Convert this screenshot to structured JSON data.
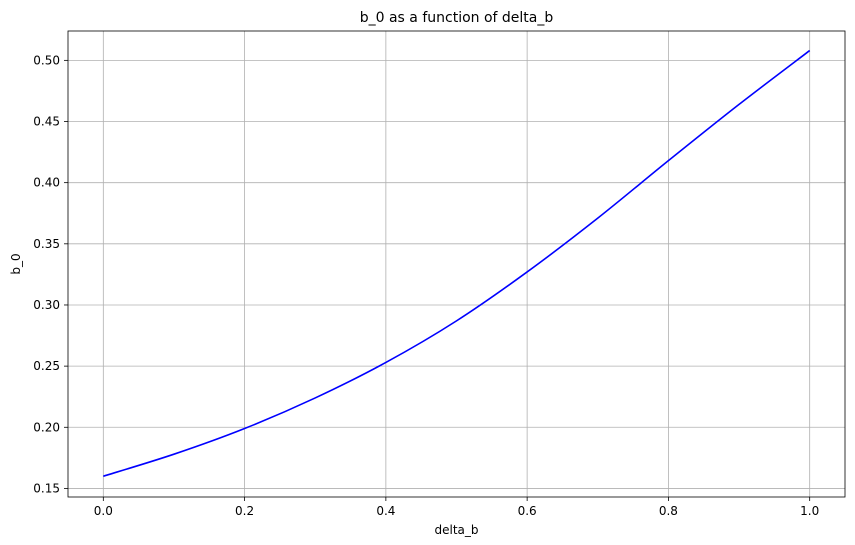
{
  "chart_data": {
    "type": "line",
    "title": "b_0 as a function of delta_b",
    "xlabel": "delta_b",
    "ylabel": "b_0",
    "xlim": [
      -0.05,
      1.05
    ],
    "ylim": [
      0.143,
      0.524
    ],
    "grid": true,
    "xticks": [
      0.0,
      0.2,
      0.4,
      0.6,
      0.8,
      1.0
    ],
    "xtick_labels": [
      "0.0",
      "0.2",
      "0.4",
      "0.6",
      "0.8",
      "1.0"
    ],
    "yticks": [
      0.15,
      0.2,
      0.25,
      0.3,
      0.35,
      0.4,
      0.45,
      0.5
    ],
    "ytick_labels": [
      "0.15",
      "0.20",
      "0.25",
      "0.30",
      "0.35",
      "0.40",
      "0.45",
      "0.50"
    ],
    "series": [
      {
        "color": "#0000ff",
        "x": [
          0.0,
          0.1,
          0.2,
          0.3,
          0.4,
          0.5,
          0.6,
          0.7,
          0.8,
          0.9,
          1.0
        ],
        "y": [
          0.16,
          0.178,
          0.199,
          0.224,
          0.253,
          0.287,
          0.327,
          0.371,
          0.418,
          0.464,
          0.508
        ]
      }
    ]
  }
}
